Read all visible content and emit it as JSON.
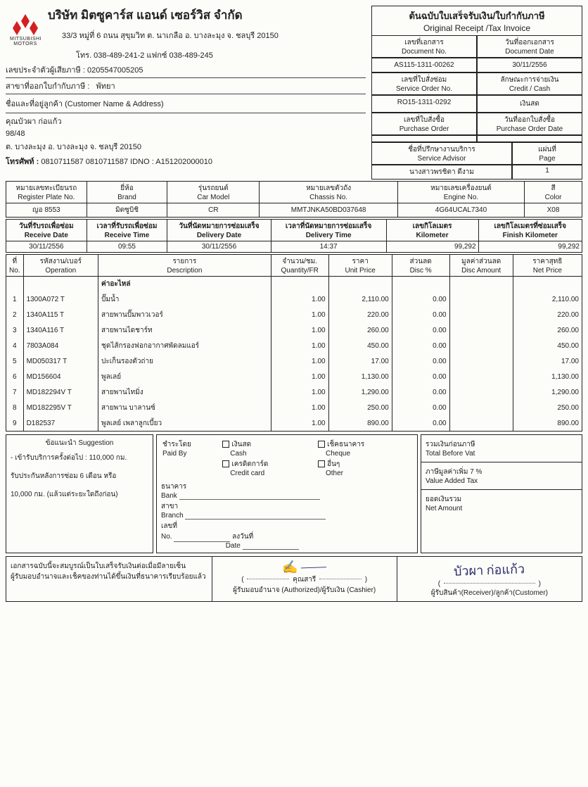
{
  "company": {
    "name_th": "บริษัท มิตซูคาร์ส แอนด์ เซอร์วิส จำกัด",
    "logo_text": "MITSUBISHI MOTORS",
    "address": "33/3 หมู่ที่ 6 ถนน สุขุมวิท ต. นาเกลือ อ. บางละมุง จ. ชลบุรี 20150",
    "phone": "โทร. 038-489-241-2 แฟกซ์ 038-489-245",
    "tax_label": "เลขประจำตัวผู้เสียภาษี :",
    "tax_no": "0205547005205",
    "branch_label": "สาขาที่ออกใบกำกับภาษี :",
    "branch": "พัทยา"
  },
  "doc_title": {
    "th": "ต้นฉบับใบเสร็จรับเงิน/ใบกำกับภาษี",
    "en": "Original Receipt /Tax Invoice"
  },
  "doc": {
    "doc_no_label_th": "เลขที่เอกสาร",
    "doc_no_label_en": "Document No.",
    "doc_date_label_th": "วันที่ออกเอกสาร",
    "doc_date_label_en": "Document Date",
    "doc_no": "AS115-1311-00262",
    "doc_date": "30/11/2556",
    "so_label_th": "เลขที่ใบสั่งซ่อม",
    "so_label_en": "Service Order No.",
    "pay_label_th": "ลักษณะการจ่ายเงิน",
    "pay_label_en": "Credit / Cash",
    "so_no": "RO15-1311-0292",
    "pay": "เงินสด",
    "po_label_th": "เลขที่ใบสั่งซื้อ",
    "po_label_en": "Purchase Order",
    "po_date_label_th": "วันที่ออกใบสั่งซื้อ",
    "po_date_label_en": "Purchase Order Date",
    "po_no": "",
    "po_date": "",
    "advisor_label_th": "ชื่อที่ปรึกษางานบริการ",
    "advisor_label_en": "Service Advisor",
    "page_label_th": "แผ่นที่",
    "page_label_en": "Page",
    "advisor": "นางสาวพรชิตา ดีงาม",
    "page": "1"
  },
  "customer": {
    "title": "ชื่อและที่อยู่ลูกค้า (Customer Name & Address)",
    "name": "คุณบัวผา ก่อแก้ว",
    "line2": "98/48",
    "line3": "ต. บางละมุง อ. บางละมุง จ. ชลบุรี  20150",
    "tel_label": "โทรศัพท์ :",
    "tel": "0810711587 0810711587  IDNO : A151202000010"
  },
  "vehicle_hdr": {
    "plate_th": "หมายเลขทะเบียนรถ",
    "plate_en": "Register Plate No.",
    "brand_th": "ยี่ห้อ",
    "brand_en": "Brand",
    "model_th": "รุ่นรถยนต์",
    "model_en": "Car Model",
    "chassis_th": "หมายเลขตัวถัง",
    "chassis_en": "Chassis No.",
    "engine_th": "หมายเลขเครื่องยนต์",
    "engine_en": "Engine No.",
    "color_th": "สี",
    "color_en": "Color"
  },
  "vehicle": {
    "plate": "ญอ 8553",
    "brand": "มิตซูบิชิ",
    "model": "CR",
    "chassis": "MMTJNKA50BD037648",
    "engine": "4G64UCAL7340",
    "color": "X08"
  },
  "recv_hdr": {
    "rdate_th": "วันที่รับรถเพื่อซ่อม",
    "rdate_en": "Receive Date",
    "rtime_th": "เวลาที่รับรถเพื่อซ่อม",
    "rtime_en": "Receive Time",
    "ddate_th": "วันที่นัดหมายการซ่อมเสร็จ",
    "ddate_en": "Delivery Date",
    "dtime_th": "เวลาที่นัดหมายการซ่อมเสร็จ",
    "dtime_en": "Delivery Time",
    "km_th": "เลขกิโลเมตร",
    "km_en": "Kilometer",
    "fkm_th": "เลขกิโลเมตรที่ซ่อมเสร็จ",
    "fkm_en": "Finish Kilometer"
  },
  "recv": {
    "rdate": "30/11/2556",
    "rtime": "09:55",
    "ddate": "30/11/2556",
    "dtime": "14:37",
    "km": "99,292",
    "fkm": "99,292"
  },
  "items_hdr": {
    "no_th": "ที่",
    "no_en": "No.",
    "op_th": "รหัสงาน/เบอร์",
    "op_en": "Operation",
    "desc_th": "รายการ",
    "desc_en": "Description",
    "qty_th": "จำนวน/ชม.",
    "qty_en": "Quantity/FR",
    "price_th": "ราคา",
    "price_en": "Unit Price",
    "disc_th": "ส่วนลด",
    "disc_en": "Disc %",
    "damt_th": "มูลค่าส่วนลด",
    "damt_en": "Disc Amount",
    "net_th": "ราคาสุทธิ",
    "net_en": "Net Price"
  },
  "section_title": "ค่าอะไหล่",
  "items": [
    {
      "no": "1",
      "op": "1300A072 T",
      "desc": "ปั๊มน้ำ",
      "qty": "1.00",
      "price": "2,110.00",
      "disc": "0.00",
      "damt": "",
      "net": "2,110.00"
    },
    {
      "no": "2",
      "op": "1340A115 T",
      "desc": "สายพานปั๊มพาวเวอร์",
      "qty": "1.00",
      "price": "220.00",
      "disc": "0.00",
      "damt": "",
      "net": "220.00"
    },
    {
      "no": "3",
      "op": "1340A116 T",
      "desc": "สายพานไดชาร์ท",
      "qty": "1.00",
      "price": "260.00",
      "disc": "0.00",
      "damt": "",
      "net": "260.00"
    },
    {
      "no": "4",
      "op": "7803A084",
      "desc": "ชุดไส้กรองฟอกอากาศพัดลมแอร์",
      "qty": "1.00",
      "price": "450.00",
      "disc": "0.00",
      "damt": "",
      "net": "450.00"
    },
    {
      "no": "5",
      "op": "MD050317 T",
      "desc": "ปะเก็นรองตัวถ่าย",
      "qty": "1.00",
      "price": "17.00",
      "disc": "0.00",
      "damt": "",
      "net": "17.00"
    },
    {
      "no": "6",
      "op": "MD156604",
      "desc": "พูลเลย์",
      "qty": "1.00",
      "price": "1,130.00",
      "disc": "0.00",
      "damt": "",
      "net": "1,130.00"
    },
    {
      "no": "7",
      "op": "MD182294V T",
      "desc": "สายพานไทมิ่ง",
      "qty": "1.00",
      "price": "1,290.00",
      "disc": "0.00",
      "damt": "",
      "net": "1,290.00"
    },
    {
      "no": "8",
      "op": "MD182295V T",
      "desc": "สายพาน บาลานซ์",
      "qty": "1.00",
      "price": "250.00",
      "disc": "0.00",
      "damt": "",
      "net": "250.00"
    },
    {
      "no": "9",
      "op": "D182537",
      "desc": "พูลเลย์ เพลาลูกเบี้ยว",
      "qty": "1.00",
      "price": "890.00",
      "disc": "0.00",
      "damt": "",
      "net": "890.00"
    }
  ],
  "suggest": {
    "title": "ข้อแนะนำ Suggestion",
    "l1": "- เข้ารับบริการครั้งต่อไป :    110,000 กม.",
    "l2": "รับประกันหลังการซ่อม 6 เดือน หรือ",
    "l3": "10,000 กม. (แล้วแต่ระยะใดถึงก่อน)"
  },
  "pay": {
    "paidby_th": "ชำระโดย",
    "paidby_en": "Paid By",
    "cash_th": "เงินสด",
    "cash_en": "Cash",
    "cheque_th": "เช็คธนาคาร",
    "cheque_en": "Cheque",
    "credit_th": "เครดิตการ์ด",
    "credit_en": "Credit card",
    "other_th": "อื่นๆ",
    "other_en": "Other",
    "bank_th": "ธนาคาร",
    "bank_en": "Bank",
    "branch_th": "สาขา",
    "branch_en": "Branch",
    "no_th": "เลขที่",
    "no_en": "No.",
    "date_th": "ลงวันที่",
    "date_en": "Date"
  },
  "totals": {
    "bv_th": "รวมเงินก่อนภาษี",
    "bv_en": "Total Before Vat",
    "vat_th": "ภาษีมูลค่าเพิ่ม  7  %",
    "vat_en": "Value Added Tax",
    "net_th": "ยอดเงินรวม",
    "net_en": "Net Amount"
  },
  "sig": {
    "note1": "เอกสารฉบับนี้จะสมบูรณ์เป็นใบเสร็จรับเงินต่อเมื่อมีลายเซ็น",
    "note2": "ผู้รับมอบอำนาจและเช็คของท่านได้ขึ้นเงินที่ธนาคารเรียบร้อยแล้ว",
    "auth_name": "คุณสารี",
    "auth_role": "ผู้รับมอบอำนาจ (Authorized)/ผู้รับเงิน (Cashier)",
    "cust_name": "บัวผา ก่อแก้ว",
    "cust_role": "ผู้รับสินค้า(Receiver)/ลูกค้า(Customer)"
  }
}
